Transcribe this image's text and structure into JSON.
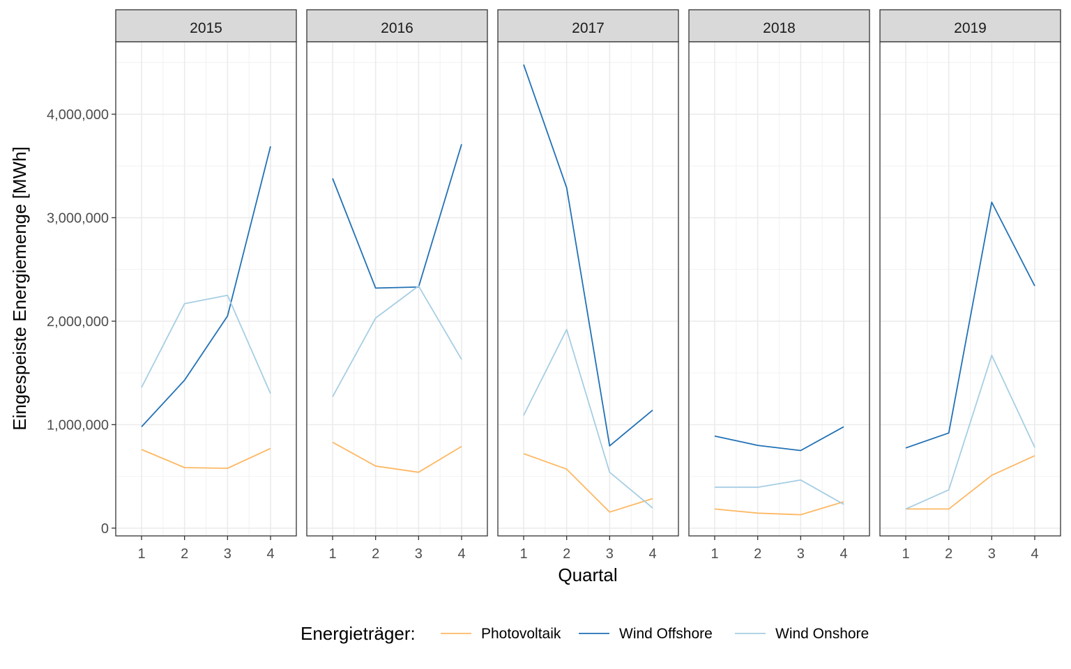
{
  "chart_data": {
    "type": "line",
    "facet_by": "year",
    "panels": [
      {
        "title": "2015",
        "x": [
          1,
          2,
          3,
          4
        ],
        "series": [
          {
            "name": "Photovoltaik",
            "values": [
              760000,
              585000,
              578000,
              770000
            ]
          },
          {
            "name": "Wind Offshore",
            "values": [
              980000,
              1430000,
              2050000,
              3690000
            ]
          },
          {
            "name": "Wind Onshore",
            "values": [
              1360000,
              2170000,
              2250000,
              1300000
            ]
          }
        ]
      },
      {
        "title": "2016",
        "x": [
          1,
          2,
          3,
          4
        ],
        "series": [
          {
            "name": "Photovoltaik",
            "values": [
              830000,
              600000,
              540000,
              790000
            ]
          },
          {
            "name": "Wind Offshore",
            "values": [
              3380000,
              2320000,
              2330000,
              3710000
            ]
          },
          {
            "name": "Wind Onshore",
            "values": [
              1270000,
              2030000,
              2340000,
              1630000
            ]
          }
        ]
      },
      {
        "title": "2017",
        "x": [
          1,
          2,
          3,
          4
        ],
        "series": [
          {
            "name": "Photovoltaik",
            "values": [
              720000,
              570000,
              155000,
              285000
            ]
          },
          {
            "name": "Wind Offshore",
            "values": [
              4480000,
              3290000,
              795000,
              1140000
            ]
          },
          {
            "name": "Wind Onshore",
            "values": [
              1090000,
              1920000,
              540000,
              195000
            ]
          }
        ]
      },
      {
        "title": "2018",
        "x": [
          1,
          2,
          3,
          4
        ],
        "series": [
          {
            "name": "Photovoltaik",
            "values": [
              185000,
              145000,
              130000,
              255000
            ]
          },
          {
            "name": "Wind Offshore",
            "values": [
              890000,
              800000,
              750000,
              980000
            ]
          },
          {
            "name": "Wind Onshore",
            "values": [
              395000,
              395000,
              465000,
              230000
            ]
          }
        ]
      },
      {
        "title": "2019",
        "x": [
          1,
          2,
          3,
          4
        ],
        "series": [
          {
            "name": "Photovoltaik",
            "values": [
              185000,
              185000,
              510000,
              700000
            ]
          },
          {
            "name": "Wind Offshore",
            "values": [
              775000,
              920000,
              3150000,
              2340000
            ]
          },
          {
            "name": "Wind Onshore",
            "values": [
              185000,
              370000,
              1670000,
              780000
            ]
          }
        ]
      }
    ],
    "xlabel": "Quartal",
    "ylabel": "Eingespeiste Energiemenge [MWh]",
    "x_ticks": [
      "1",
      "2",
      "3",
      "4"
    ],
    "xlim": [
      0.4,
      4.6
    ],
    "y_ticks": [
      0,
      1000000,
      2000000,
      3000000,
      4000000
    ],
    "y_tick_labels": [
      "0",
      "1,000,000",
      "2,000,000",
      "3,000,000",
      "4,000,000"
    ],
    "ylim": [
      -75000,
      4700000
    ],
    "grid": true,
    "legend": {
      "title": "Energieträger:",
      "position": "bottom",
      "entries": [
        "Photovoltaik",
        "Wind Offshore",
        "Wind Onshore"
      ]
    },
    "colors": {
      "Photovoltaik": "#fdb863",
      "Wind Offshore": "#2171b5",
      "Wind Onshore": "#a6cee3"
    }
  }
}
